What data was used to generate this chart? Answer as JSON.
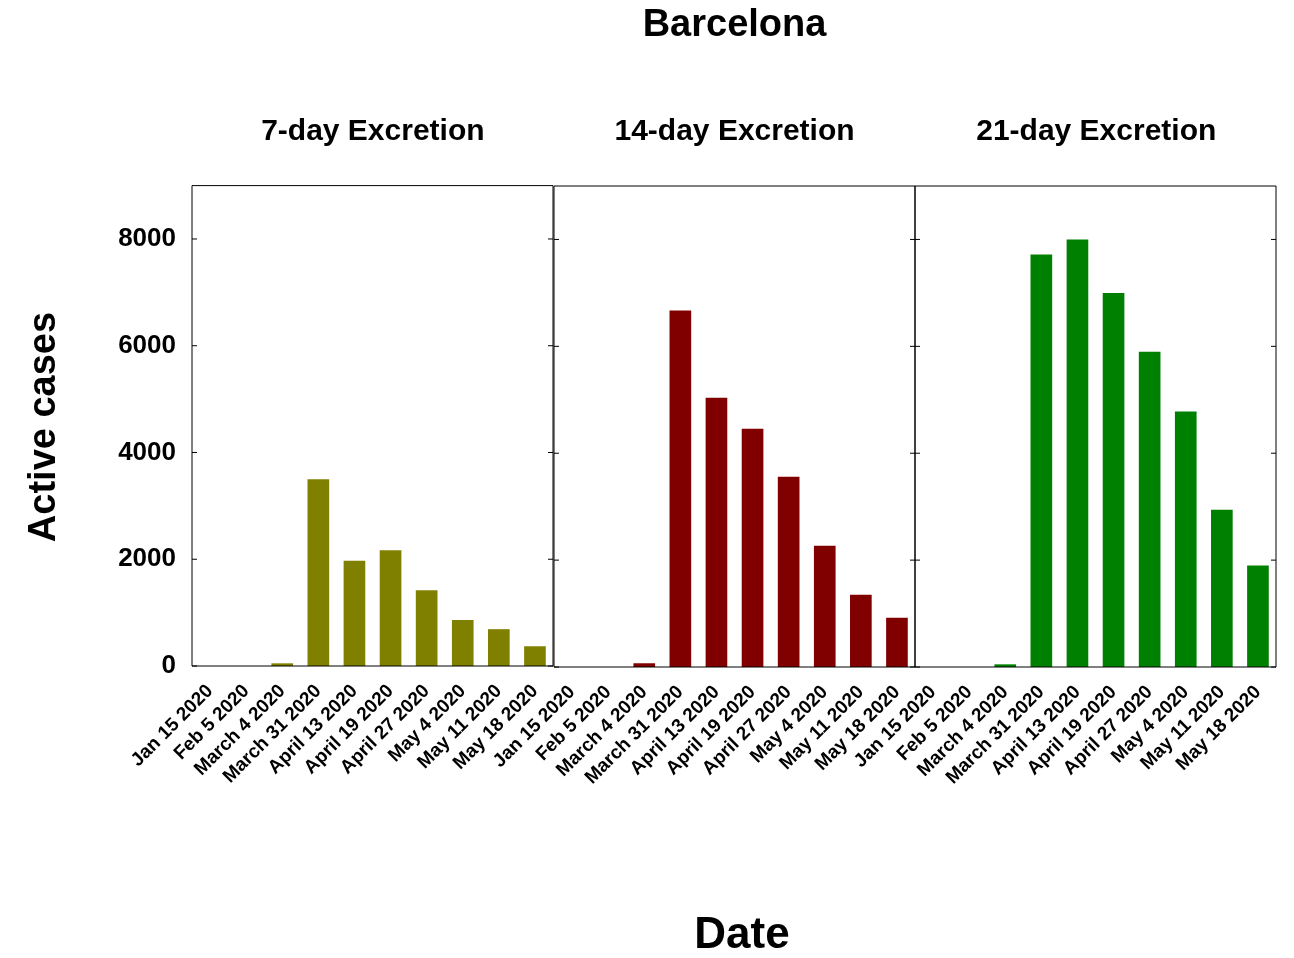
{
  "chart_data": [
    {
      "type": "bar",
      "title": "7-day Excretion",
      "ylabel": "Active cases",
      "categories": [
        "Jan 15 2020",
        "Feb 5 2020",
        "March 4 2020",
        "March 31 2020",
        "April 13 2020",
        "April 19 2020",
        "April 27 2020",
        "May 4 2020",
        "May 11 2020",
        "May 18 2020"
      ],
      "series": [
        {
          "color": "#808000",
          "values": [
            0,
            0,
            50,
            3500,
            1970,
            2170,
            1420,
            860,
            690,
            370
          ]
        }
      ],
      "ylim": [
        0,
        9000
      ],
      "yticks": [
        0,
        2000,
        4000,
        6000,
        8000
      ]
    },
    {
      "type": "bar",
      "title": "Barcelona",
      "subtitle": "14-day Excretion",
      "xlabel": "Date",
      "categories": [
        "Jan 15 2020",
        "Feb 5 2020",
        "March 4 2020",
        "March 31 2020",
        "April 13 2020",
        "April 19 2020",
        "April 27 2020",
        "May 4 2020",
        "May 11 2020",
        "May 18 2020"
      ],
      "series": [
        {
          "color": "#800000",
          "values": [
            0,
            0,
            70,
            6670,
            5040,
            4460,
            3560,
            2270,
            1350,
            920
          ]
        }
      ],
      "ylim": [
        0,
        9000
      ],
      "yticks": [
        0,
        2000,
        4000,
        6000,
        8000
      ],
      "tick_labels": "x"
    },
    {
      "type": "bar",
      "title": "21-day Excretion",
      "categories": [
        "Jan 15 2020",
        "Feb 5 2020",
        "March 4 2020",
        "March 31 2020",
        "April 13 2020",
        "April 19 2020",
        "April 27 2020",
        "May 4 2020",
        "May 11 2020",
        "May 18 2020"
      ],
      "series": [
        {
          "color": "#008000",
          "values": [
            0,
            0,
            50,
            7720,
            8000,
            7000,
            5900,
            4780,
            2940,
            1900
          ]
        }
      ],
      "ylim": [
        0,
        9000
      ],
      "yticks": [
        0,
        2000,
        4000,
        6000,
        8000
      ],
      "tick_labels": "x"
    }
  ]
}
